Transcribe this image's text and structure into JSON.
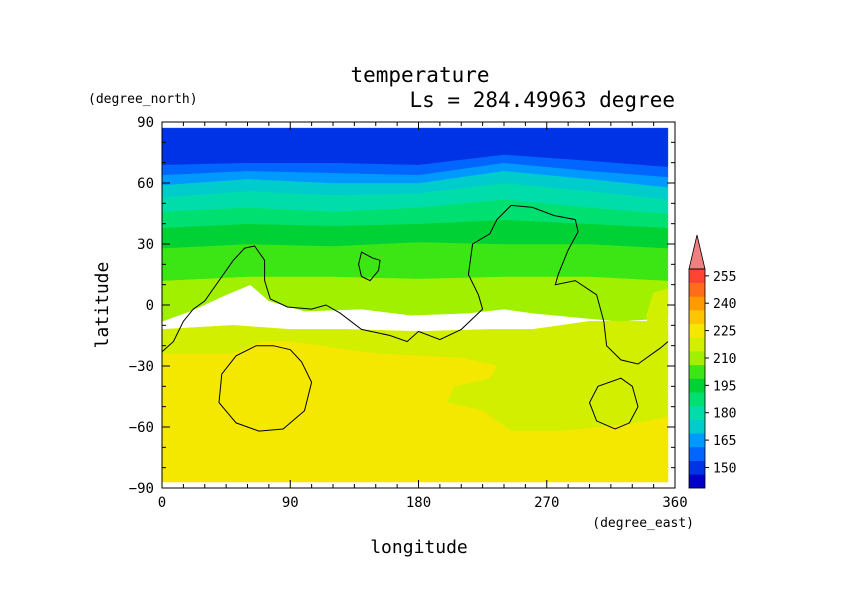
{
  "chart_data": {
    "type": "heatmap",
    "title": "temperature",
    "subtitle": "Ls = 284.49963 degree",
    "xlabel": "longitude",
    "ylabel": "latitude",
    "xunits": "(degree_east)",
    "yunits": "(degree_north)",
    "xlim": [
      0,
      360
    ],
    "ylim": [
      -90,
      90
    ],
    "x_ticks": [
      "0",
      "90",
      "180",
      "270",
      "360"
    ],
    "y_ticks": [
      "90",
      "60",
      "30",
      "0",
      "−30",
      "−60",
      "−90"
    ],
    "data_extent": {
      "lon": [
        0,
        355
      ],
      "lat": [
        -87,
        87
      ]
    },
    "colorbar": {
      "levels": [
        142.5,
        150,
        157.5,
        165,
        172.5,
        180,
        187.5,
        195,
        202.5,
        210,
        217.5,
        225,
        232.5,
        240,
        247.5,
        255,
        262.5
      ],
      "labels": [
        "150",
        "165",
        "180",
        "195",
        "210",
        "225",
        "240",
        "255"
      ],
      "colors": [
        "#0000c8",
        "#0033e6",
        "#0066ff",
        "#0099ff",
        "#00cccc",
        "#00ddaa",
        "#00e070",
        "#00d235",
        "#3ce614",
        "#a0f000",
        "#d2ef00",
        "#f5e800",
        "#ffc500",
        "#ff9a00",
        "#ff6d1a",
        "#ff4433"
      ],
      "extend_max_color": "#f08080"
    },
    "regions": [
      {
        "temp": 219,
        "points": [
          [
            0,
            -87
          ],
          [
            355,
            -87
          ],
          [
            355,
            -13
          ],
          [
            340,
            -8
          ],
          [
            300,
            -8
          ],
          [
            260,
            -12
          ],
          [
            230,
            -12
          ],
          [
            180,
            -13
          ],
          [
            130,
            -12
          ],
          [
            90,
            -12
          ],
          [
            50,
            -10
          ],
          [
            0,
            -12
          ]
        ]
      },
      {
        "temp": 226,
        "points": [
          [
            0,
            -87
          ],
          [
            355,
            -87
          ],
          [
            355,
            -55
          ],
          [
            335,
            -58
          ],
          [
            280,
            -62
          ],
          [
            245,
            -62
          ],
          [
            225,
            -52
          ],
          [
            200,
            -48
          ],
          [
            205,
            -40
          ],
          [
            230,
            -36
          ],
          [
            235,
            -30
          ],
          [
            210,
            -26
          ],
          [
            150,
            -24
          ],
          [
            110,
            -20
          ],
          [
            90,
            -18
          ],
          [
            70,
            -18
          ],
          [
            50,
            -24
          ],
          [
            0,
            -24
          ]
        ]
      },
      {
        "temp": 232,
        "points": [
          [
            25,
            -38
          ],
          [
            40,
            -28
          ],
          [
            75,
            -26
          ],
          [
            115,
            -33
          ],
          [
            135,
            -34
          ],
          [
            140,
            -42
          ],
          [
            120,
            -52
          ],
          [
            140,
            -56
          ],
          [
            145,
            -64
          ],
          [
            130,
            -72
          ],
          [
            100,
            -74
          ],
          [
            60,
            -72
          ],
          [
            40,
            -66
          ],
          [
            60,
            -58
          ],
          [
            55,
            -50
          ],
          [
            40,
            -45
          ],
          [
            25,
            -42
          ]
        ]
      },
      {
        "temp": 214,
        "points": [
          [
            0,
            -8
          ],
          [
            20,
            -3
          ],
          [
            45,
            5
          ],
          [
            62,
            10
          ],
          [
            75,
            2
          ],
          [
            100,
            -3
          ],
          [
            140,
            -2
          ],
          [
            175,
            -5
          ],
          [
            215,
            -4
          ],
          [
            240,
            -2
          ],
          [
            260,
            -4
          ],
          [
            290,
            -6
          ],
          [
            320,
            -8
          ],
          [
            342,
            -7
          ],
          [
            355,
            -5
          ],
          [
            355,
            12
          ],
          [
            300,
            14
          ],
          [
            240,
            14
          ],
          [
            180,
            13
          ],
          [
            120,
            14
          ],
          [
            60,
            14
          ],
          [
            0,
            12
          ]
        ]
      },
      {
        "temp": 207,
        "points": [
          [
            0,
            12
          ],
          [
            60,
            14
          ],
          [
            120,
            14
          ],
          [
            180,
            13
          ],
          [
            240,
            14
          ],
          [
            300,
            14
          ],
          [
            355,
            12
          ],
          [
            355,
            28
          ],
          [
            300,
            30
          ],
          [
            240,
            30
          ],
          [
            180,
            31
          ],
          [
            120,
            29
          ],
          [
            60,
            30
          ],
          [
            0,
            28
          ]
        ]
      },
      {
        "temp": 200,
        "points": [
          [
            0,
            28
          ],
          [
            60,
            30
          ],
          [
            120,
            29
          ],
          [
            180,
            31
          ],
          [
            240,
            30
          ],
          [
            300,
            30
          ],
          [
            355,
            28
          ],
          [
            355,
            38
          ],
          [
            300,
            40
          ],
          [
            240,
            42
          ],
          [
            180,
            40
          ],
          [
            120,
            39
          ],
          [
            60,
            40
          ],
          [
            0,
            38
          ]
        ]
      },
      {
        "temp": 193,
        "points": [
          [
            0,
            38
          ],
          [
            60,
            40
          ],
          [
            120,
            39
          ],
          [
            180,
            40
          ],
          [
            240,
            42
          ],
          [
            300,
            40
          ],
          [
            355,
            38
          ],
          [
            355,
            45
          ],
          [
            300,
            48
          ],
          [
            240,
            52
          ],
          [
            180,
            48
          ],
          [
            120,
            46
          ],
          [
            60,
            48
          ],
          [
            0,
            46
          ]
        ]
      },
      {
        "temp": 185,
        "points": [
          [
            0,
            46
          ],
          [
            60,
            48
          ],
          [
            120,
            46
          ],
          [
            180,
            48
          ],
          [
            240,
            52
          ],
          [
            300,
            48
          ],
          [
            355,
            45
          ],
          [
            355,
            52
          ],
          [
            300,
            56
          ],
          [
            240,
            60
          ],
          [
            180,
            55
          ],
          [
            120,
            54
          ],
          [
            60,
            56
          ],
          [
            0,
            53
          ]
        ]
      },
      {
        "temp": 177,
        "points": [
          [
            0,
            53
          ],
          [
            60,
            56
          ],
          [
            120,
            54
          ],
          [
            180,
            55
          ],
          [
            240,
            60
          ],
          [
            300,
            56
          ],
          [
            355,
            52
          ],
          [
            355,
            58
          ],
          [
            300,
            62
          ],
          [
            240,
            66
          ],
          [
            180,
            60
          ],
          [
            120,
            60
          ],
          [
            60,
            62
          ],
          [
            0,
            59
          ]
        ]
      },
      {
        "temp": 169,
        "points": [
          [
            0,
            59
          ],
          [
            60,
            62
          ],
          [
            120,
            60
          ],
          [
            180,
            60
          ],
          [
            240,
            66
          ],
          [
            300,
            62
          ],
          [
            355,
            58
          ],
          [
            355,
            63
          ],
          [
            300,
            66
          ],
          [
            240,
            70
          ],
          [
            180,
            64
          ],
          [
            120,
            65
          ],
          [
            60,
            66
          ],
          [
            0,
            64
          ]
        ]
      },
      {
        "temp": 160,
        "points": [
          [
            0,
            64
          ],
          [
            60,
            66
          ],
          [
            120,
            65
          ],
          [
            180,
            64
          ],
          [
            240,
            70
          ],
          [
            300,
            66
          ],
          [
            355,
            63
          ],
          [
            355,
            68
          ],
          [
            300,
            71
          ],
          [
            240,
            74
          ],
          [
            180,
            69
          ],
          [
            120,
            70
          ],
          [
            60,
            70
          ],
          [
            0,
            69
          ]
        ]
      },
      {
        "temp": 152,
        "points": [
          [
            0,
            69
          ],
          [
            60,
            70
          ],
          [
            120,
            70
          ],
          [
            180,
            69
          ],
          [
            240,
            74
          ],
          [
            300,
            71
          ],
          [
            355,
            68
          ],
          [
            355,
            87
          ],
          [
            0,
            87
          ]
        ]
      },
      {
        "temp": 224,
        "points": [
          [
            355,
            8
          ],
          [
            345,
            6
          ],
          [
            340,
            -5
          ],
          [
            342,
            -15
          ],
          [
            355,
            -18
          ]
        ]
      }
    ],
    "contours": [
      {
        "closed": false,
        "points": [
          [
            0,
            -23
          ],
          [
            8,
            -18
          ],
          [
            15,
            -8
          ],
          [
            22,
            -2
          ],
          [
            30,
            2
          ],
          [
            40,
            12
          ],
          [
            50,
            22
          ],
          [
            58,
            28
          ],
          [
            65,
            29
          ],
          [
            72,
            22
          ],
          [
            72,
            12
          ],
          [
            76,
            3
          ],
          [
            88,
            -1
          ],
          [
            105,
            -2
          ],
          [
            115,
            0
          ],
          [
            125,
            -4
          ],
          [
            140,
            -12
          ],
          [
            160,
            -15
          ],
          [
            172,
            -18
          ],
          [
            180,
            -13
          ],
          [
            195,
            -17
          ],
          [
            210,
            -12
          ],
          [
            225,
            -2
          ],
          [
            222,
            5
          ],
          [
            215,
            15
          ],
          [
            218,
            30
          ],
          [
            230,
            35
          ],
          [
            235,
            42
          ],
          [
            245,
            49
          ],
          [
            260,
            48
          ],
          [
            275,
            44
          ],
          [
            290,
            42
          ],
          [
            292,
            36
          ],
          [
            285,
            27
          ],
          [
            278,
            15
          ],
          [
            276,
            10
          ],
          [
            290,
            12
          ],
          [
            305,
            5
          ],
          [
            310,
            -8
          ],
          [
            312,
            -20
          ],
          [
            322,
            -27
          ],
          [
            334,
            -29
          ],
          [
            350,
            -21
          ],
          [
            355,
            -18
          ]
        ]
      },
      {
        "closed": true,
        "points": [
          [
            140,
            26
          ],
          [
            148,
            23
          ],
          [
            153,
            22
          ],
          [
            152,
            17
          ],
          [
            146,
            12
          ],
          [
            140,
            14
          ],
          [
            138,
            20
          ]
        ]
      },
      {
        "closed": true,
        "points": [
          [
            78,
            -20
          ],
          [
            90,
            -22
          ],
          [
            98,
            -28
          ],
          [
            105,
            -38
          ],
          [
            100,
            -52
          ],
          [
            85,
            -61
          ],
          [
            68,
            -62
          ],
          [
            52,
            -58
          ],
          [
            40,
            -48
          ],
          [
            42,
            -34
          ],
          [
            52,
            -25
          ],
          [
            66,
            -20
          ]
        ]
      },
      {
        "closed": true,
        "points": [
          [
            322,
            -36
          ],
          [
            330,
            -40
          ],
          [
            334,
            -50
          ],
          [
            328,
            -58
          ],
          [
            318,
            -61
          ],
          [
            305,
            -57
          ],
          [
            300,
            -48
          ],
          [
            306,
            -40
          ]
        ]
      }
    ]
  }
}
